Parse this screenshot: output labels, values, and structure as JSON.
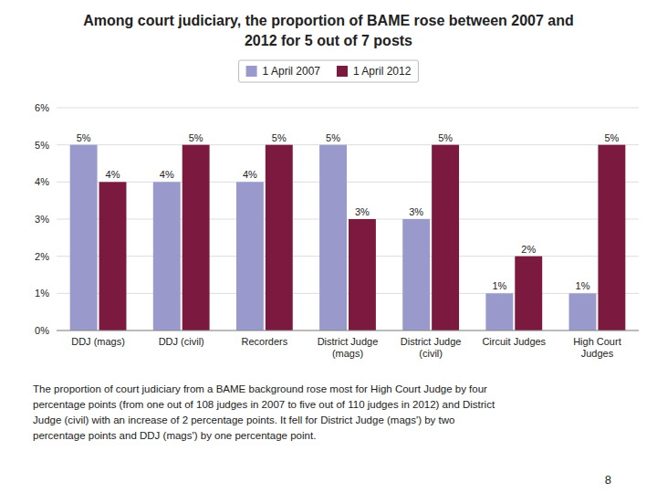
{
  "chart_data": {
    "type": "bar",
    "title": "Among court judiciary, the proportion of BAME rose between 2007 and\n2012 for 5 out of 7 posts",
    "categories": [
      "DDJ (mags)",
      "DDJ (civil)",
      "Recorders",
      "District Judge\n(mags)",
      "District Judge\n(civil)",
      "Circuit Judges",
      "High Court\nJudges"
    ],
    "series": [
      {
        "name": "1 April 2007",
        "color": "#9999cc",
        "values": [
          5,
          4,
          4,
          5,
          3,
          1,
          1
        ],
        "value_labels": [
          "5%",
          "4%",
          "4%",
          "5%",
          "3%",
          "1%",
          "1%"
        ]
      },
      {
        "name": "1 April 2012",
        "color": "#7b1a3e",
        "values": [
          4,
          5,
          5,
          3,
          5,
          2,
          5
        ],
        "value_labels": [
          "4%",
          "5%",
          "5%",
          "3%",
          "5%",
          "2%",
          "5%"
        ]
      }
    ],
    "ylim": [
      0,
      6
    ],
    "yticks": [
      {
        "value": 0,
        "label": "0%"
      },
      {
        "value": 1,
        "label": "1%"
      },
      {
        "value": 2,
        "label": "2%"
      },
      {
        "value": 3,
        "label": "3%"
      },
      {
        "value": 4,
        "label": "4%"
      },
      {
        "value": 5,
        "label": "5%"
      },
      {
        "value": 6,
        "label": "6%"
      }
    ],
    "grid": true,
    "legend": "top",
    "data_labels": true,
    "annotations": [
      "The proportion of court judiciary from a BAME background rose most for High Court Judge by four\npercentage points (from one out of 108 judges in 2007 to five out of 110 judges in 2012) and District\nJudge (civil) with an increase of 2 percentage points. It fell for District Judge (mags') by two\npercentage points and DDJ (mags') by one percentage point.",
      "8"
    ]
  }
}
